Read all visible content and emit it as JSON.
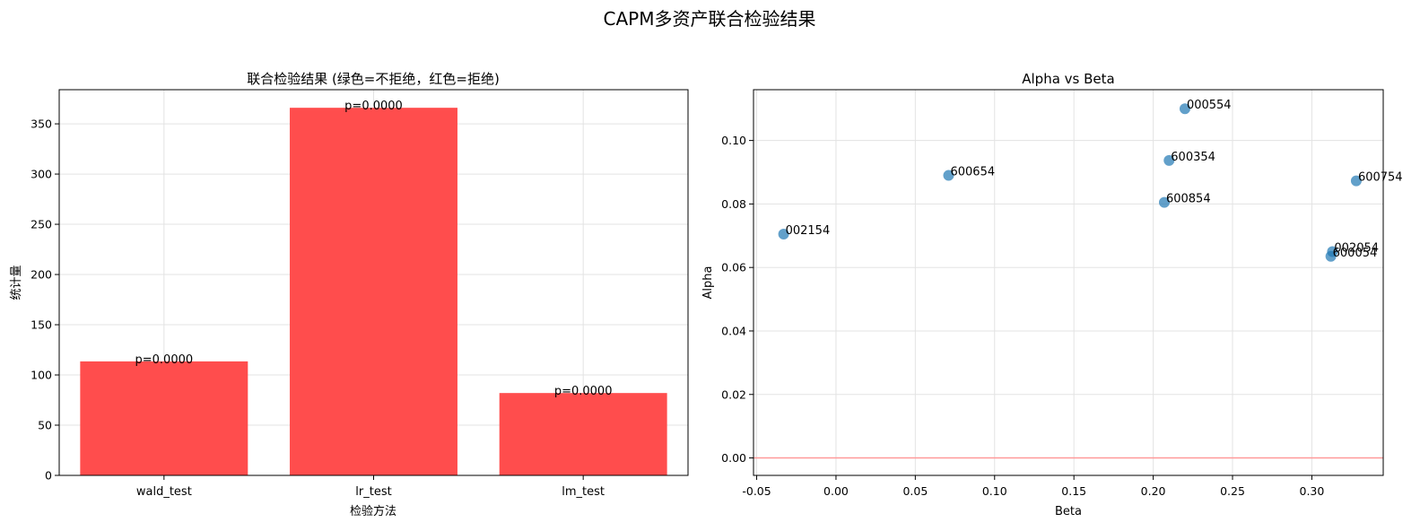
{
  "figure": {
    "title": "CAPM多资产联合检验结果"
  },
  "chart_data": [
    {
      "type": "bar",
      "title": "联合检验结果 (绿色=不拒绝，红色=拒绝)",
      "xlabel": "检验方法",
      "ylabel": "统计量",
      "categories": [
        "wald_test",
        "lr_test",
        "lm_test"
      ],
      "values": [
        113.5,
        366.0,
        82.0
      ],
      "bar_labels": [
        "p=0.0000",
        "p=0.0000",
        "p=0.0000"
      ],
      "bar_color": "#ff4d4d",
      "ylim": [
        0,
        384
      ],
      "yticks": [
        0,
        50,
        100,
        150,
        200,
        250,
        300,
        350
      ],
      "grid": true
    },
    {
      "type": "scatter",
      "title": "Alpha vs Beta",
      "xlabel": "Beta",
      "ylabel": "Alpha",
      "points": [
        {
          "label": "000554",
          "x": 0.22,
          "y": 0.11
        },
        {
          "label": "600654",
          "x": 0.071,
          "y": 0.089
        },
        {
          "label": "600354",
          "x": 0.21,
          "y": 0.0937
        },
        {
          "label": "600754",
          "x": 0.328,
          "y": 0.0873
        },
        {
          "label": "600854",
          "x": 0.207,
          "y": 0.0805
        },
        {
          "label": "002154",
          "x": -0.033,
          "y": 0.0705
        },
        {
          "label": "002054",
          "x": 0.313,
          "y": 0.065
        },
        {
          "label": "600054",
          "x": 0.312,
          "y": 0.0635
        }
      ],
      "point_color": "#1f77b4",
      "hline": {
        "y": 0.0,
        "color": "#ff9999"
      },
      "xlim": [
        -0.052,
        0.345
      ],
      "ylim": [
        -0.0055,
        0.116
      ],
      "xticks": [
        -0.05,
        0.0,
        0.05,
        0.1,
        0.15,
        0.2,
        0.25,
        0.3
      ],
      "xtick_labels": [
        "-0.05",
        "0.00",
        "0.05",
        "0.10",
        "0.15",
        "0.20",
        "0.25",
        "0.30"
      ],
      "yticks": [
        0.0,
        0.02,
        0.04,
        0.06,
        0.08,
        0.1
      ],
      "ytick_labels": [
        "0.00",
        "0.02",
        "0.04",
        "0.06",
        "0.08",
        "0.10"
      ],
      "grid": true
    }
  ]
}
